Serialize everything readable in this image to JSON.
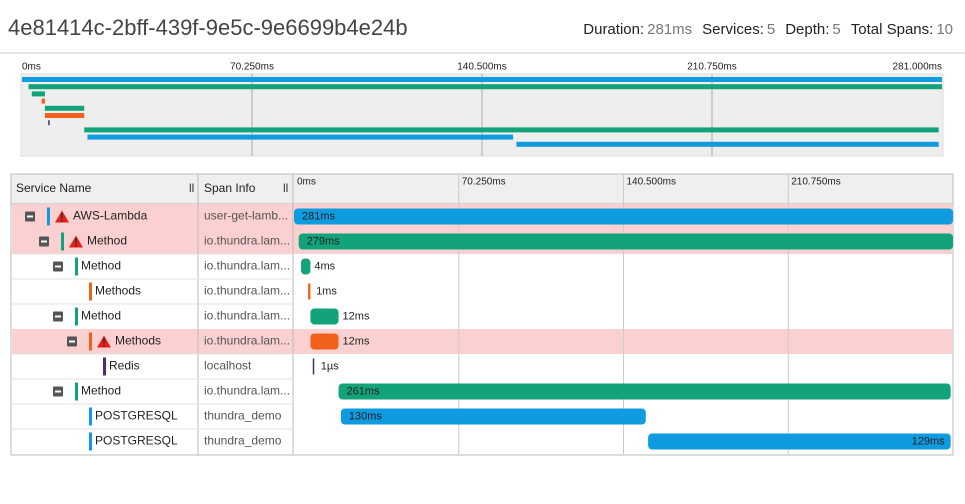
{
  "header": {
    "trace_id": "4e81414c-2bff-439f-9e5c-9e6699b4e24b",
    "stats": [
      {
        "label": "Duration:",
        "value": "281ms"
      },
      {
        "label": "Services:",
        "value": "5"
      },
      {
        "label": "Depth:",
        "value": "5"
      },
      {
        "label": "Total Spans:",
        "value": "10"
      }
    ]
  },
  "timeline": {
    "range": [
      0,
      281
    ],
    "minimap_ticks": [
      {
        "value": 0,
        "label": "0ms"
      },
      {
        "value": 70.25,
        "label": "70.250ms"
      },
      {
        "value": 140.5,
        "label": "140.500ms"
      },
      {
        "value": 210.75,
        "label": "210.750ms"
      },
      {
        "value": 281,
        "label": "281.000ms"
      }
    ],
    "table_ticks": [
      {
        "value": 0,
        "label": "0ms"
      },
      {
        "value": 70.25,
        "label": "70.250ms"
      },
      {
        "value": 140.5,
        "label": "140.500ms"
      },
      {
        "value": 210.75,
        "label": "210.750ms"
      }
    ]
  },
  "table": {
    "columns": [
      "Service Name",
      "Span Info"
    ],
    "spans": [
      {
        "name": "AWS-Lambda",
        "info": "user-get-lamb...",
        "start": 0,
        "duration": 281,
        "label": "281ms",
        "color": "#0f9be0",
        "level": 0,
        "error": true,
        "collapsible": true
      },
      {
        "name": "Method",
        "info": "io.thundra.lam...",
        "start": 2,
        "duration": 279,
        "label": "279ms",
        "color": "#12a37a",
        "level": 1,
        "error": true,
        "collapsible": true
      },
      {
        "name": "Method",
        "info": "io.thundra.lam...",
        "start": 3,
        "duration": 4,
        "label": "4ms",
        "color": "#12a37a",
        "level": 2,
        "error": false,
        "collapsible": true
      },
      {
        "name": "Methods",
        "info": "io.thundra.lam...",
        "start": 6,
        "duration": 1,
        "label": "1ms",
        "color": "#f0621c",
        "level": 3,
        "error": false,
        "collapsible": false
      },
      {
        "name": "Method",
        "info": "io.thundra.lam...",
        "start": 7,
        "duration": 12,
        "label": "12ms",
        "color": "#12a37a",
        "level": 2,
        "error": false,
        "collapsible": true
      },
      {
        "name": "Methods",
        "info": "io.thundra.lam...",
        "start": 7,
        "duration": 12,
        "label": "12ms",
        "color": "#f0621c",
        "level": 3,
        "error": true,
        "collapsible": true
      },
      {
        "name": "Redis",
        "info": "localhost",
        "start": 8,
        "duration": 0.001,
        "label": "1µs",
        "color": "#4b2d6b",
        "level": 4,
        "error": false,
        "collapsible": false
      },
      {
        "name": "Method",
        "info": "io.thundra.lam...",
        "start": 19,
        "duration": 261,
        "label": "261ms",
        "color": "#12a37a",
        "level": 2,
        "error": false,
        "collapsible": true
      },
      {
        "name": "POSTGRESQL",
        "info": "thundra_demo",
        "start": 20,
        "duration": 130,
        "label": "130ms",
        "color": "#0f9be0",
        "level": 3,
        "error": false,
        "collapsible": false
      },
      {
        "name": "POSTGRESQL",
        "info": "thundra_demo",
        "start": 151,
        "duration": 129,
        "label": "129ms",
        "color": "#0f9be0",
        "level": 3,
        "error": false,
        "collapsible": false
      }
    ]
  }
}
